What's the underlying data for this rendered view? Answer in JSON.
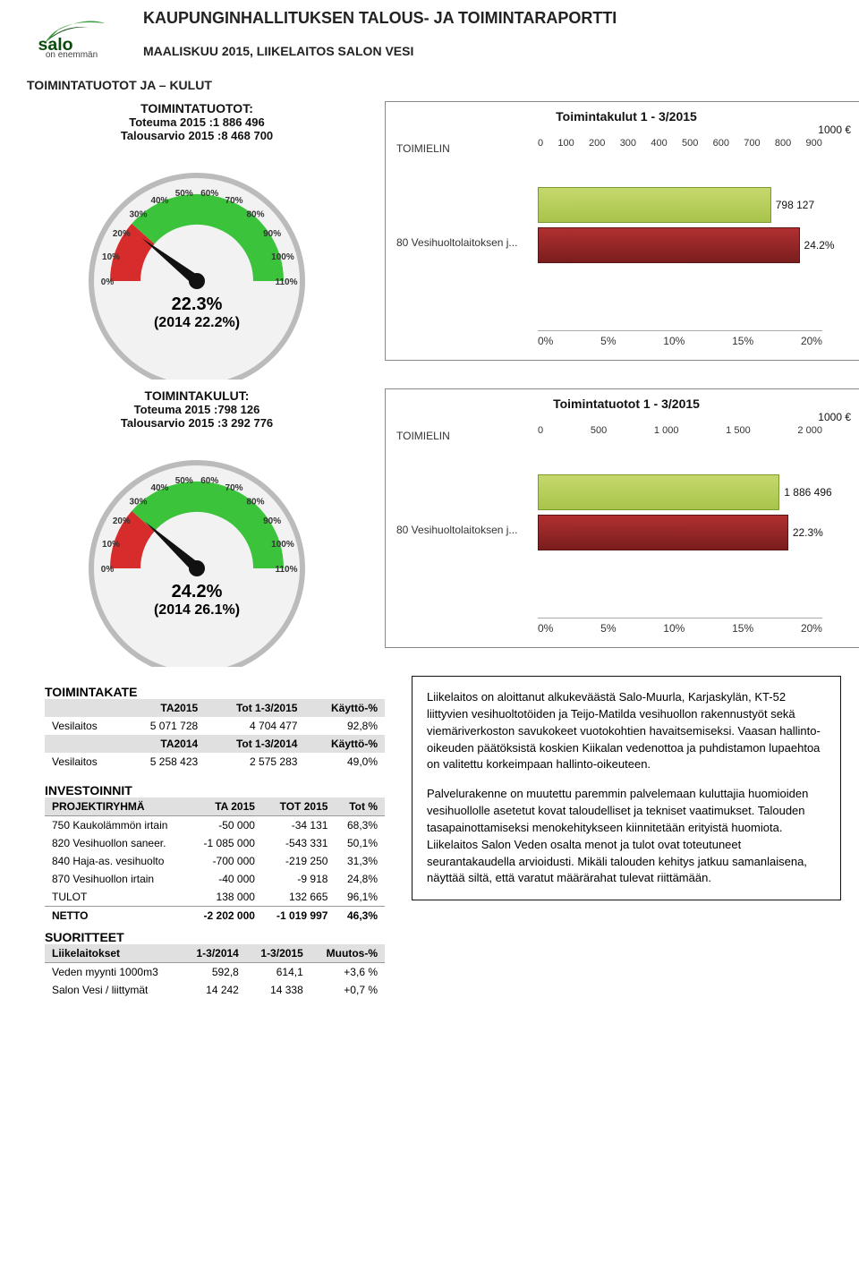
{
  "header": {
    "logo_tag": "on enemmän",
    "main_title": "KAUPUNGINHALLITUKSEN TALOUS- JA TOIMINTARAPORTTI",
    "sub_title": "MAALISKUU 2015, LIIKELAITOS SALON VESI",
    "section_title": "TOIMINTATUOTOT JA – KULUT"
  },
  "tuotot_stat": {
    "title": "TOIMINTATUOTOT:",
    "line1": "Toteuma    2015 :1 886 496",
    "line2": "Talousarvio 2015 :8 468 700",
    "pct": "22.3%",
    "prev": "(2014 22.2%)",
    "needle_angle": -142
  },
  "kulut_stat": {
    "title": "TOIMINTAKULUT:",
    "line1": "Toteuma    2015 :798 126",
    "line2": "Talousarvio 2015 :3 292 776",
    "pct": "24.2%",
    "prev": "(2014 26.1%)",
    "needle_angle": -138
  },
  "gauge_ticks": [
    "0%",
    "10%",
    "20%",
    "30%",
    "40%",
    "50%",
    "60%",
    "70%",
    "80%",
    "90%",
    "100%",
    "110%"
  ],
  "kulut_chart": {
    "title": "Toimintakulut 1 - 3/2015",
    "unit": "1000 €",
    "yaxis": "TOIMIELIN",
    "row_label": "80 Vesihuoltolaitoksen j...",
    "top_ticks": [
      "0",
      "100",
      "200",
      "300",
      "400",
      "500",
      "600",
      "700",
      "800",
      "900"
    ],
    "bottom_ticks": [
      "0%",
      "5%",
      "10%",
      "15%",
      "20%"
    ],
    "green_value_label": "798 127",
    "red_value_label": "24.2%",
    "green_width_pct": 82,
    "red_width_pct": 92
  },
  "tuotot_chart": {
    "title": "Toimintatuotot 1 - 3/2015",
    "unit": "1000 €",
    "yaxis": "TOIMIELIN",
    "row_label": "80 Vesihuoltolaitoksen j...",
    "top_ticks": [
      "0",
      "500",
      "1 000",
      "1 500",
      "2 000"
    ],
    "bottom_ticks": [
      "0%",
      "5%",
      "10%",
      "15%",
      "20%"
    ],
    "green_value_label": "1 886 496",
    "red_value_label": "22.3%",
    "green_width_pct": 85,
    "red_width_pct": 88
  },
  "toimintakate": {
    "title": "TOIMINTAKATE",
    "headers1": [
      "",
      "TA2015",
      "Tot 1-3/2015",
      "Käyttö-%"
    ],
    "row1": [
      "Vesilaitos",
      "5 071 728",
      "4 704 477",
      "92,8%"
    ],
    "headers2": [
      "",
      "TA2014",
      "Tot 1-3/2014",
      "Käyttö-%"
    ],
    "row2": [
      "Vesilaitos",
      "5 258 423",
      "2 575 283",
      "49,0%"
    ]
  },
  "investoinnit": {
    "title": "INVESTOINNIT",
    "headers": [
      "PROJEKTIRYHMÄ",
      "TA 2015",
      "TOT 2015",
      "Tot %"
    ],
    "rows": [
      [
        "750 Kaukolämmön irtain",
        "-50 000",
        "-34 131",
        "68,3%"
      ],
      [
        "820 Vesihuollon saneer.",
        "-1 085 000",
        "-543 331",
        "50,1%"
      ],
      [
        "840 Haja-as. vesihuolto",
        "-700 000",
        "-219 250",
        "31,3%"
      ],
      [
        "870 Vesihuollon irtain",
        "-40 000",
        "-9 918",
        "24,8%"
      ],
      [
        "TULOT",
        "138 000",
        "132 665",
        "96,1%"
      ]
    ],
    "netto": [
      "NETTO",
      "-2 202 000",
      "-1 019 997",
      "46,3%"
    ]
  },
  "suoritteet": {
    "title": "SUORITTEET",
    "headers": [
      "Liikelaitokset",
      "1-3/2014",
      "1-3/2015",
      "Muutos-%"
    ],
    "rows": [
      [
        "Veden myynti 1000m3",
        "592,8",
        "614,1",
        "+3,6 %"
      ],
      [
        "Salon Vesi / liittymät",
        "14 242",
        "14 338",
        "+0,7 %"
      ]
    ]
  },
  "notes": {
    "p1": "Liikelaitos on aloittanut alkukeväästä Salo-Muurla, Karjaskylän, KT-52 liittyvien vesihuoltotöiden ja Teijo-Matilda vesihuollon rakennustyöt sekä viemäriverkoston savukokeet vuotokohtien havaitsemiseksi. Vaasan hallinto-oikeuden päätöksistä koskien Kiikalan vedenottoa ja puhdistamon lupaehtoa on valitettu korkeimpaan hallinto-oikeuteen.",
    "p2": "Palvelurakenne on muutettu paremmin palvelemaan kuluttajia huomioiden vesihuollolle asetetut kovat taloudelliset ja tekniset vaatimukset. Talouden tasapainottamiseksi menokehitykseen kiinnitetään erityistä huomiota. Liikelaitos Salon Veden osalta menot ja tulot ovat toteutuneet seurantakaudella arvioidusti. Mikäli talouden kehitys jatkuu samanlaisena, näyttää siltä, että varatut määrärahat tulevat riittämään."
  },
  "colors": {
    "green_zone": "#3bc43b",
    "red_zone": "#d62c2c",
    "bar_green": "#b7d35a",
    "bar_red": "#8f2424"
  }
}
